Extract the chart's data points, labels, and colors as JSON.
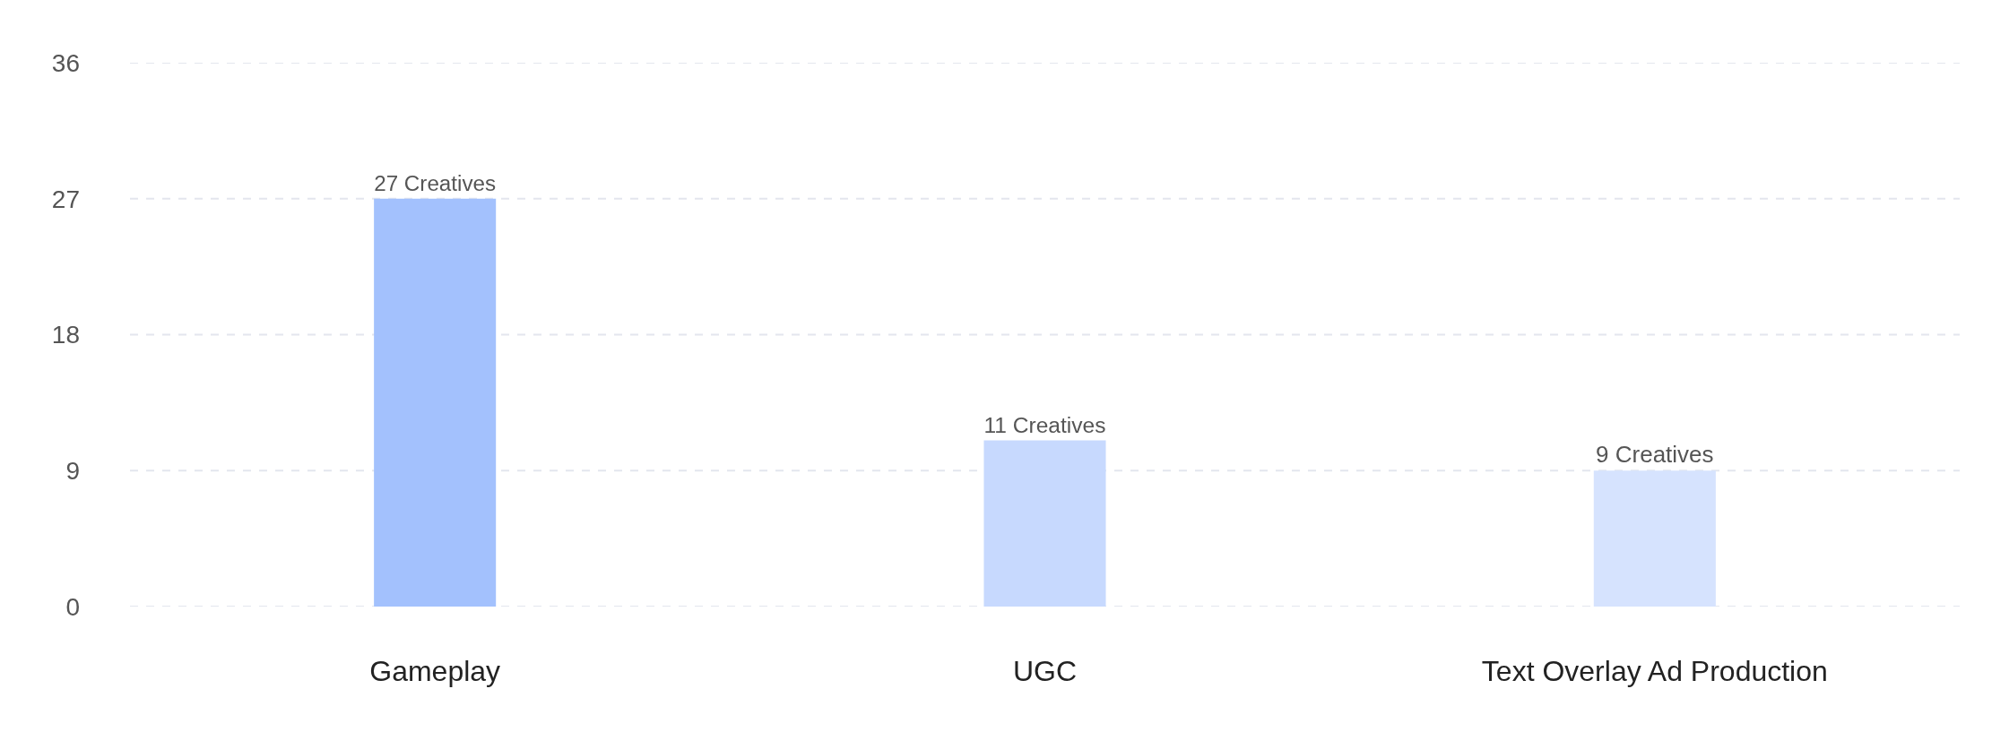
{
  "chart_data": {
    "type": "bar",
    "categories": [
      "Gameplay",
      "UGC",
      "Text Overlay Ad Production"
    ],
    "values": [
      27,
      11,
      9
    ],
    "colors": [
      "#a3c1fd",
      "#c7d9fe",
      "#d6e3fe"
    ],
    "value_labels": [
      "27 Creatives",
      "11 Creatives",
      "9 Creatives"
    ],
    "ylim": [
      0,
      36
    ],
    "yticks": [
      0,
      9,
      18,
      27,
      36
    ],
    "grid": "y"
  }
}
